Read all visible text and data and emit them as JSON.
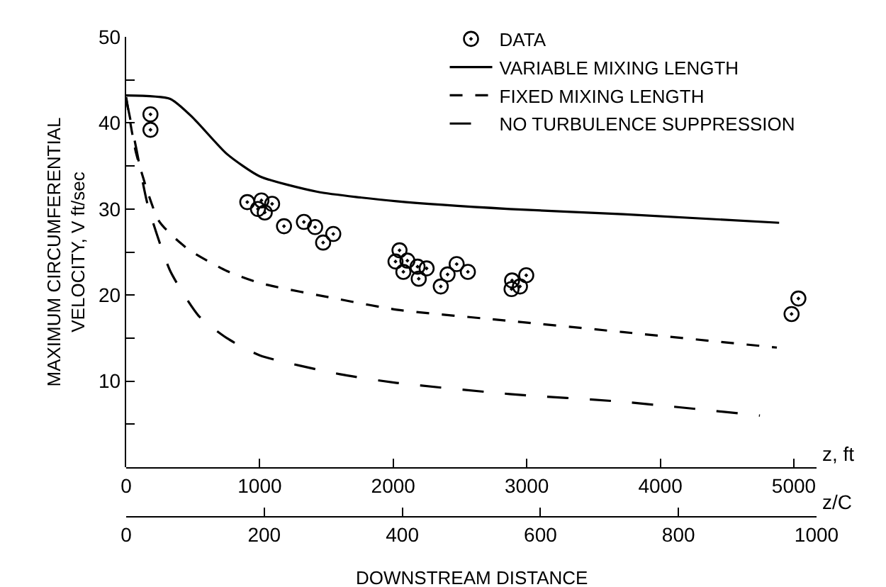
{
  "chart_data": {
    "type": "line",
    "xlabel": "z, ft",
    "ylabel": "MAXIMUM CIRCUMFERENTIAL\nVELOCITY, V ft/sec",
    "x2label": "z/C",
    "annotations": [
      "DOWNSTREAM DISTANCE"
    ],
    "xlim": [
      0,
      5170
    ],
    "xticks": [
      0,
      1000,
      2000,
      3000,
      4000,
      5000
    ],
    "x2lim": [
      0,
      1000
    ],
    "x2ticks": [
      0,
      200,
      400,
      600,
      800,
      1000
    ],
    "ylim": [
      0,
      50
    ],
    "yticks": [
      {
        "value": 5,
        "label": null
      },
      10,
      {
        "value": 15,
        "label": null
      },
      20,
      {
        "value": 25,
        "label": null
      },
      30,
      {
        "value": 35,
        "label": null
      },
      40,
      {
        "value": 45,
        "label": null
      },
      50
    ],
    "grid": false,
    "legend": "top right",
    "series": [
      {
        "name": "DATA",
        "type": "scatter",
        "marker": "circle",
        "color": "#000000",
        "x": [
          182,
          182,
          907,
          987,
          1013,
          1038,
          1093,
          1182,
          1331,
          1415,
          1475,
          1551,
          2047,
          2017,
          2076,
          2106,
          2182,
          2191,
          2250,
          2356,
          2407,
          2475,
          2559,
          2886,
          2890,
          2949,
          2996,
          4983,
          5034
        ],
        "values": [
          41.0,
          39.2,
          30.8,
          30.0,
          31.0,
          29.6,
          30.6,
          28.0,
          28.5,
          27.9,
          26.1,
          27.1,
          25.2,
          23.9,
          22.7,
          24.0,
          23.3,
          21.9,
          23.1,
          21.0,
          22.4,
          23.6,
          22.7,
          20.7,
          21.7,
          21.0,
          22.3,
          17.8,
          19.6
        ]
      },
      {
        "name": "VARIABLE MIXING LENGTH",
        "line_style": "solid",
        "color": "#000000",
        "x": [
          0,
          330,
          500,
          754,
          1000,
          1432,
          2025,
          2873,
          3720,
          4890
        ],
        "values": [
          43.2,
          42.8,
          40.6,
          36.4,
          33.8,
          32.0,
          30.9,
          30.0,
          29.4,
          28.4
        ]
      },
      {
        "name": "FIXED MIXING LENGTH",
        "line_style": "dashed",
        "color": "#000000",
        "x": [
          0,
          76,
          246,
          458,
          754,
          1000,
          1602,
          2025,
          2873,
          3720,
          4873
        ],
        "values": [
          43.0,
          36.4,
          28.6,
          25.4,
          22.8,
          21.4,
          19.5,
          18.3,
          17.0,
          15.7,
          13.9
        ]
      },
      {
        "name": "NO TURBULENCE SUPPRESSION",
        "line_style": "dashed",
        "color": "#000000",
        "x": [
          0,
          76,
          161,
          330,
          542,
          754,
          1000,
          1602,
          2025,
          2873,
          3720,
          4746
        ],
        "values": [
          42.8,
          37.0,
          30.5,
          22.8,
          17.6,
          15.0,
          13.0,
          10.8,
          9.8,
          8.5,
          7.6,
          6.0
        ]
      }
    ]
  }
}
